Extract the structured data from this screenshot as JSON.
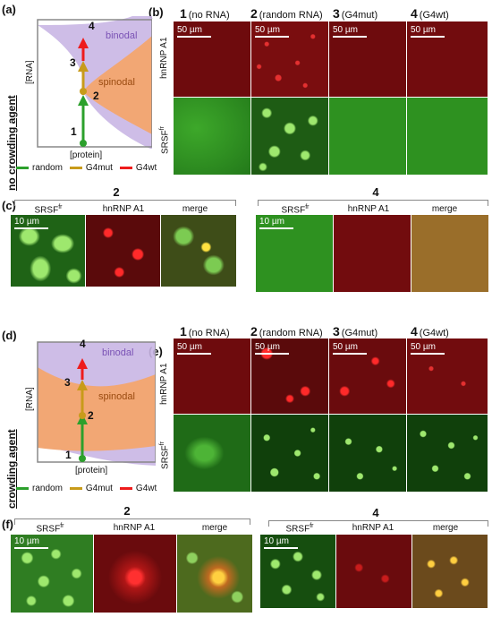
{
  "panels": {
    "a": "(a)",
    "b": "(b)",
    "c": "(c)",
    "d": "(d)",
    "e": "(e)",
    "f": "(f)"
  },
  "diagram": {
    "y_axis": "[RNA]",
    "x_axis": "[protein]",
    "binodal": "binodal",
    "spinodal": "spinodal",
    "points": [
      "1",
      "2",
      "3",
      "4"
    ]
  },
  "side_label_top": "no crowding agent",
  "side_label_bottom": "crowding agent",
  "legend": {
    "random": "random",
    "g4mut": "G4mut",
    "g4wt": "G4wt"
  },
  "columns": [
    {
      "num": "1",
      "label": "(no RNA)"
    },
    {
      "num": "2",
      "label": "(random RNA)"
    },
    {
      "num": "3",
      "label": "(G4mut)"
    },
    {
      "num": "4",
      "label": "(G4wt)"
    }
  ],
  "rows": {
    "hnrnp": "hnRNP A1",
    "srsf": "SRSF",
    "srsf_sup": "fr"
  },
  "scalebar_50": "50 µm",
  "scalebar_10": "10 µm",
  "merge_panels": {
    "left_num": "2",
    "right_num": "4",
    "srsf": "SRSF",
    "srsf_sup": "fr",
    "hnrnp": "hnRNP A1",
    "merge": "merge"
  },
  "colors": {
    "binodal": "#c9b6e4",
    "spinodal": "#f2a774",
    "random": "#2ca02c",
    "g4mut": "#c89b1a",
    "g4wt": "#ee1c1c",
    "red_bg": "#7a0d0f",
    "green_bg": "#2d8c1e",
    "merge_bg": "#9a6e2a"
  }
}
